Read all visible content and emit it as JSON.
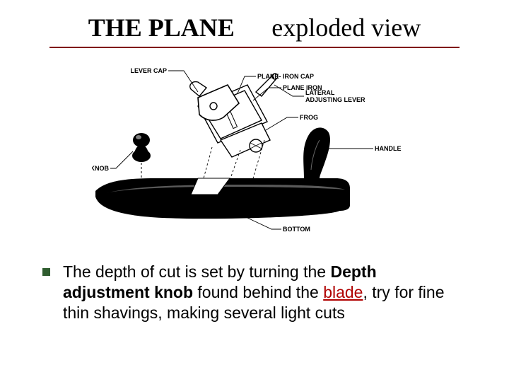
{
  "title": {
    "main": "THE PLANE",
    "sub": "exploded view",
    "underline_color": "#800000",
    "font_family": "Times New Roman",
    "main_fontsize": 36,
    "sub_fontsize": 36
  },
  "diagram": {
    "type": "labeled-diagram",
    "subject": "hand plane exploded view",
    "background_color": "#ffffff",
    "line_color": "#000000",
    "body_fill": "#000000",
    "label_fontsize": 9,
    "label_fontweight": "bold",
    "labels": {
      "lever_cap": "LEVER CAP",
      "plane_iron_cap": "PLANE- IRON CAP",
      "plane_iron": "PLANE IRON",
      "lateral_adjusting_lever": "LATERAL\nADJUSTING LEVER",
      "frog": "FROG",
      "handle": "HANDLE",
      "knob": "KNOB",
      "bottom": "BOTTOM"
    }
  },
  "bullet": {
    "square_color": "#2f5d2f",
    "text_color": "#000000",
    "blade_color": "#b00000",
    "fontsize": 23,
    "segments": {
      "s1": "The depth of cut is set by turning the ",
      "s2": "Depth adjustment knob",
      "s3": " found behind the ",
      "s4": "blade",
      "s5": ", try for fine thin shavings, making several light cuts"
    }
  }
}
